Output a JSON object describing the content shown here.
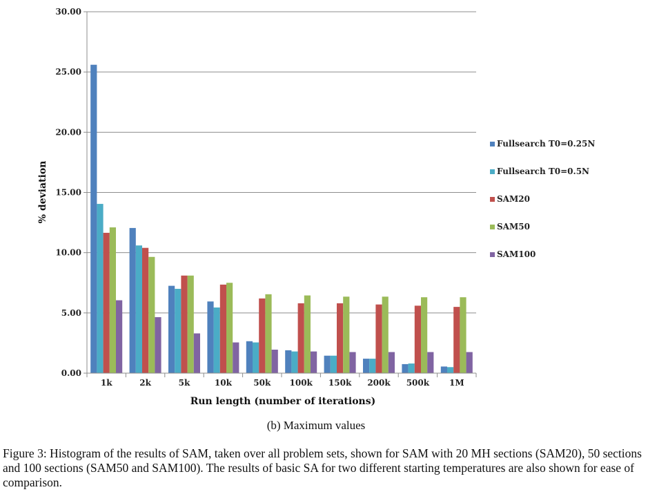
{
  "chart_data": {
    "type": "bar",
    "ylabel": "% deviation",
    "xlabel": "Run length (number of iterations)",
    "ylim": [
      0,
      30
    ],
    "yticks": [
      "0.00",
      "5.00",
      "10.00",
      "15.00",
      "20.00",
      "25.00",
      "30.00"
    ],
    "grid": true,
    "legend_position": "right",
    "categories": [
      "1k",
      "2k",
      "5k",
      "10k",
      "50k",
      "100k",
      "150k",
      "200k",
      "500k",
      "1M"
    ],
    "series": [
      {
        "name": "Fullsearch T0=0.25N",
        "color": "#4f81bd",
        "values": [
          25.6,
          12.05,
          7.25,
          5.95,
          2.65,
          1.9,
          1.45,
          1.2,
          0.75,
          0.55
        ]
      },
      {
        "name": "Fullsearch T0=0.5N",
        "color": "#4bacc6",
        "values": [
          14.05,
          10.6,
          7.0,
          5.45,
          2.55,
          1.8,
          1.45,
          1.2,
          0.8,
          0.5
        ]
      },
      {
        "name": "SAM20",
        "color": "#c0504d",
        "values": [
          11.65,
          10.4,
          8.1,
          7.35,
          6.2,
          5.8,
          5.8,
          5.7,
          5.6,
          5.5
        ]
      },
      {
        "name": "SAM50",
        "color": "#9bbb59",
        "values": [
          12.1,
          9.65,
          8.1,
          7.5,
          6.55,
          6.45,
          6.35,
          6.35,
          6.3,
          6.3
        ]
      },
      {
        "name": "SAM100",
        "color": "#8064a2",
        "values": [
          6.05,
          4.65,
          3.3,
          2.55,
          1.95,
          1.8,
          1.75,
          1.75,
          1.75,
          1.75
        ]
      }
    ]
  },
  "subcaption": "(b) Maximum values",
  "caption": "Figure 3: Histogram of the results of SAM, taken over all problem sets, shown for SAM with 20 MH sections (SAM20), 50 sections and 100 sections (SAM50 and SAM100). The results of basic SA for two different starting temperatures are also shown for ease of comparison."
}
